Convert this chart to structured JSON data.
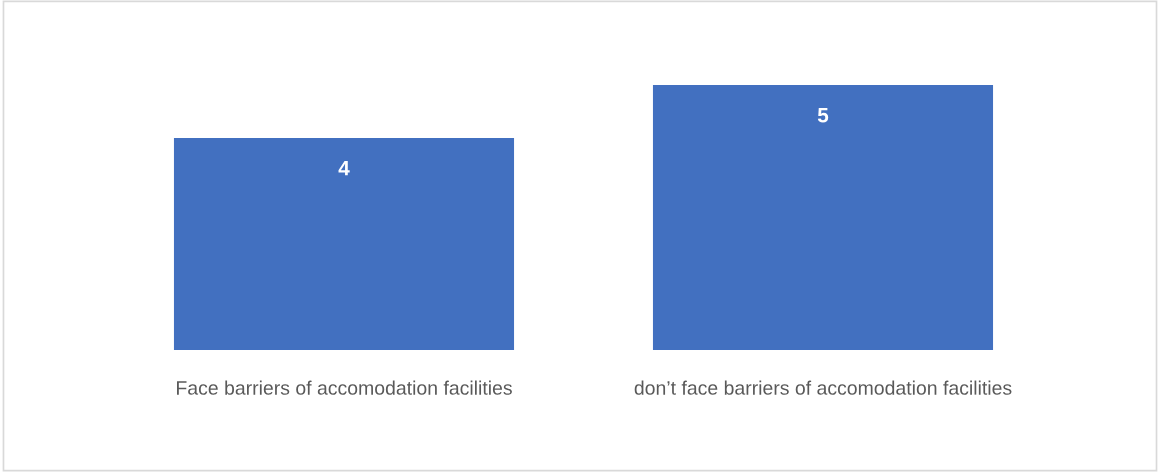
{
  "chart_data": {
    "type": "bar",
    "categories": [
      "Face barriers of accomodation facilities",
      "don’t face barriers of accomodation facilities"
    ],
    "values": [
      4,
      5
    ],
    "color": "#4270c0",
    "data_labels": true,
    "grid": false,
    "legend": false
  }
}
